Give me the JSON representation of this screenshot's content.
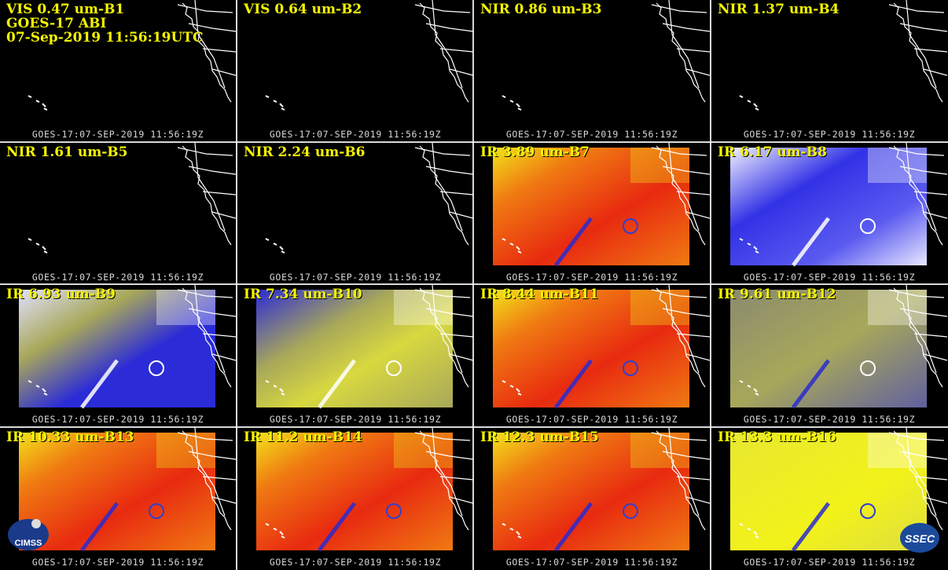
{
  "header": {
    "line2": "GOES-17 ABI",
    "line3": "07-Sep-2019 11:56:19UTC"
  },
  "footer_text": "GOES-17:07-SEP-2019 11:56:19Z",
  "panels": [
    {
      "label": "VIS 0.47 um-B1",
      "style": "dark"
    },
    {
      "label": "VIS 0.64 um-B2",
      "style": "dark"
    },
    {
      "label": "NIR 0.86 um-B3",
      "style": "dark"
    },
    {
      "label": "NIR 1.37 um-B4",
      "style": "dark"
    },
    {
      "label": "NIR 1.61 um-B5",
      "style": "dark"
    },
    {
      "label": "NIR 2.24 um-B6",
      "style": "dark"
    },
    {
      "label": "IR 3.89 um-B7",
      "style": "warm"
    },
    {
      "label": "IR 6.17 um-B8",
      "style": "wv-blue"
    },
    {
      "label": "IR 6.93 um-B9",
      "style": "wv-mix"
    },
    {
      "label": "IR 7.34 um-B10",
      "style": "wv-yellow"
    },
    {
      "label": "IR 8.44 um-B11",
      "style": "warm"
    },
    {
      "label": "IR 9.61 um-B12",
      "style": "ozone"
    },
    {
      "label": "IR 10.33 um-B13",
      "style": "warm"
    },
    {
      "label": "IR 11.2 um-B14",
      "style": "warm"
    },
    {
      "label": "IR 12.3 um-B15",
      "style": "warm"
    },
    {
      "label": "IR 13.3 um-B16",
      "style": "co2"
    }
  ],
  "logos": {
    "left": "CIMSS",
    "right": "SSEC"
  },
  "colors": {
    "label": "#f5f500",
    "warm_red": "#e82a10",
    "warm_orange": "#f07a12",
    "warm_yellow": "#f2e21a",
    "cold_blue": "#2b2bd8",
    "wv_blue": "#3232e6",
    "olive": "#a8a85a"
  }
}
